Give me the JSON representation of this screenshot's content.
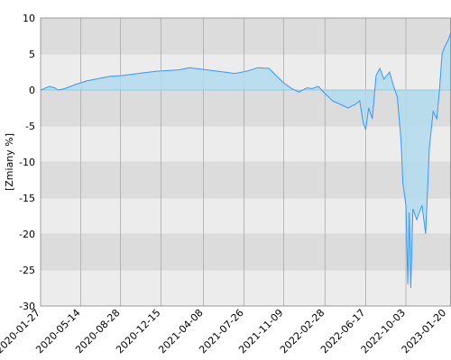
{
  "chart_data": {
    "type": "area",
    "y_label": "[Zmiany %]",
    "x": [
      "2020-01-27",
      "2020-02-20",
      "2020-03-05",
      "2020-03-15",
      "2020-04-01",
      "2020-05-01",
      "2020-06-01",
      "2020-07-01",
      "2020-08-01",
      "2020-09-01",
      "2020-10-01",
      "2020-11-01",
      "2020-12-01",
      "2021-01-01",
      "2021-02-01",
      "2021-03-01",
      "2021-04-01",
      "2021-05-01",
      "2021-06-01",
      "2021-07-01",
      "2021-08-01",
      "2021-09-01",
      "2021-10-01",
      "2021-10-20",
      "2021-11-09",
      "2021-12-01",
      "2021-12-20",
      "2022-01-10",
      "2022-01-25",
      "2022-02-10",
      "2022-02-28",
      "2022-03-20",
      "2022-04-10",
      "2022-05-01",
      "2022-05-20",
      "2022-06-01",
      "2022-06-10",
      "2022-06-17",
      "2022-06-25",
      "2022-07-05",
      "2022-07-15",
      "2022-07-25",
      "2022-08-05",
      "2022-08-20",
      "2022-08-31",
      "2022-09-10",
      "2022-09-20",
      "2022-09-25",
      "2022-10-03",
      "2022-10-08",
      "2022-10-12",
      "2022-10-16",
      "2022-10-22",
      "2022-11-01",
      "2022-11-15",
      "2022-11-25",
      "2022-12-05",
      "2022-12-15",
      "2022-12-25",
      "2023-01-01",
      "2023-01-08",
      "2023-01-15",
      "2023-01-25",
      "2023-02-01"
    ],
    "series": [
      {
        "name": "Zmiany",
        "color": "#3399ff",
        "fill": "#b3dcef",
        "values": [
          0,
          0.5,
          0.3,
          0,
          0.2,
          0.8,
          1.3,
          1.6,
          1.9,
          2.0,
          2.2,
          2.4,
          2.6,
          2.7,
          2.8,
          3.1,
          2.9,
          2.7,
          2.5,
          2.3,
          2.6,
          3.1,
          3.0,
          2.0,
          1.0,
          0.2,
          -0.3,
          0.3,
          0.2,
          0.5,
          -0.5,
          -1.5,
          -2.0,
          -2.5,
          -2.0,
          -1.5,
          -4.5,
          -5.5,
          -2.5,
          -4.0,
          2.0,
          3.0,
          1.5,
          2.5,
          0.5,
          -1.0,
          -7.0,
          -13.0,
          -16.0,
          -27.0,
          -17.0,
          -27.5,
          -16.5,
          -18.0,
          -16.0,
          -20.0,
          -8.0,
          -3.0,
          -4.0,
          0,
          5.0,
          6.0,
          7.0,
          8.0
        ]
      }
    ],
    "xlim": [
      "2020-01-27",
      "2023-02-01"
    ],
    "xticks": [
      "2020-01-27",
      "2020-05-14",
      "2020-08-28",
      "2020-12-15",
      "2021-04-08",
      "2021-07-26",
      "2021-11-09",
      "2022-02-28",
      "2022-06-17",
      "2022-10-03",
      "2023-01-20"
    ],
    "ylim": [
      -30,
      10
    ],
    "yticks": [
      -30,
      -25,
      -20,
      -15,
      -10,
      -5,
      0,
      5,
      10
    ],
    "grid": true
  }
}
